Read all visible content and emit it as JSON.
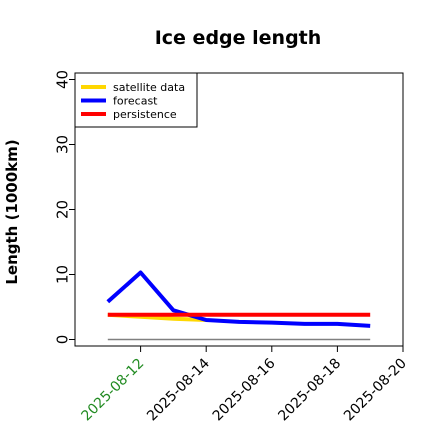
{
  "chart_data": {
    "type": "line",
    "title": "Ice edge length",
    "xlabel": "",
    "ylabel": "Length (1000km)",
    "x": [
      "2025-08-11",
      "2025-08-12",
      "2025-08-13",
      "2025-08-14",
      "2025-08-15",
      "2025-08-16",
      "2025-08-17",
      "2025-08-18",
      "2025-08-19"
    ],
    "x_ticks": [
      "2025-08-12",
      "2025-08-14",
      "2025-08-16",
      "2025-08-18",
      "2025-08-20"
    ],
    "x_tick_colors": [
      "#228B22",
      "#000000",
      "#000000",
      "#000000",
      "#000000"
    ],
    "xlim": [
      "2025-08-10",
      "2025-08-20"
    ],
    "y_ticks": [
      "0",
      "10",
      "20",
      "30",
      "40"
    ],
    "ylim": [
      -1,
      41
    ],
    "series": [
      {
        "name": "satellite data",
        "color": "#FFD700",
        "values": [
          3.8,
          3.5,
          3.2,
          3.0,
          null,
          null,
          null,
          null,
          null
        ]
      },
      {
        "name": "forecast",
        "color": "#0000FF",
        "values": [
          5.8,
          10.3,
          4.5,
          3.0,
          2.7,
          2.6,
          2.4,
          2.4,
          2.1
        ]
      },
      {
        "name": "persistence",
        "color": "#FF0000",
        "values": [
          3.8,
          3.8,
          3.8,
          3.8,
          3.8,
          3.8,
          3.8,
          3.8,
          3.8
        ]
      }
    ],
    "reference_line": {
      "y": 0,
      "color": "#808080",
      "from": "2025-08-11",
      "to": "2025-08-19"
    },
    "legend_position": "top-left",
    "grid": false
  }
}
